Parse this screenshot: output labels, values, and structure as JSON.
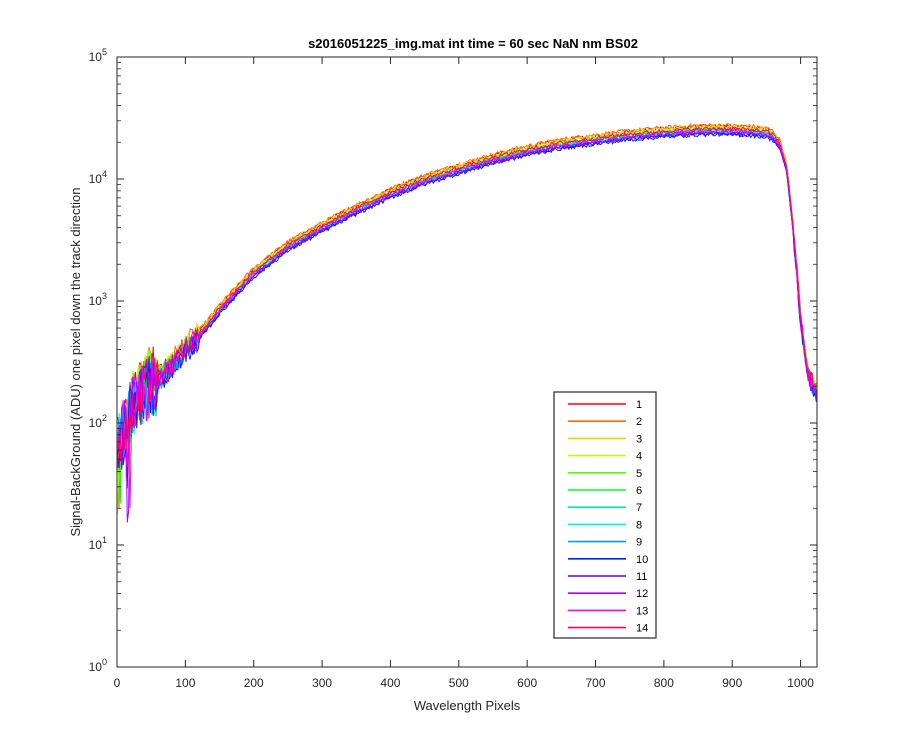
{
  "chart_data": {
    "type": "line",
    "title": "s2016051225_img.mat int time = 60 sec  NaN nm BS02",
    "xlabel": "Wavelength Pixels",
    "ylabel": "Signal-BackGround (ADU) one pixel down the track direction",
    "xlim": [
      0,
      1024
    ],
    "ylim": [
      1,
      100000
    ],
    "yscale": "log",
    "grid": false,
    "legend_position": "bottom-right",
    "x_ticks": [
      "0",
      "100",
      "200",
      "300",
      "400",
      "500",
      "600",
      "700",
      "800",
      "900",
      "1000"
    ],
    "y_ticks": [
      {
        "base": "10",
        "exp": "0"
      },
      {
        "base": "10",
        "exp": "1"
      },
      {
        "base": "10",
        "exp": "2"
      },
      {
        "base": "10",
        "exp": "3"
      },
      {
        "base": "10",
        "exp": "4"
      },
      {
        "base": "10",
        "exp": "5"
      }
    ],
    "x": [
      0,
      10,
      20,
      30,
      40,
      50,
      60,
      80,
      100,
      120,
      150,
      200,
      250,
      300,
      350,
      400,
      450,
      500,
      550,
      600,
      650,
      700,
      750,
      800,
      850,
      880,
      900,
      930,
      950,
      960,
      970,
      980,
      990,
      1000,
      1010,
      1024
    ],
    "base_values": [
      60,
      90,
      130,
      160,
      190,
      210,
      230,
      300,
      400,
      520,
      850,
      1700,
      2800,
      4000,
      5600,
      7600,
      9800,
      12000,
      14500,
      17000,
      19300,
      21000,
      22700,
      24000,
      25000,
      25200,
      25000,
      24600,
      23800,
      22500,
      19000,
      12000,
      3500,
      700,
      260,
      170
    ],
    "series": [
      {
        "name": "1",
        "color": "#ff0000",
        "scale": 1.08
      },
      {
        "name": "2",
        "color": "#ff6a00",
        "scale": 1.1
      },
      {
        "name": "3",
        "color": "#ffcc00",
        "scale": 1.07
      },
      {
        "name": "4",
        "color": "#bfff00",
        "scale": 1.04
      },
      {
        "name": "5",
        "color": "#55ff00",
        "scale": 1.02
      },
      {
        "name": "6",
        "color": "#00ff2a",
        "scale": 1.0
      },
      {
        "name": "7",
        "color": "#00ee99",
        "scale": 0.98
      },
      {
        "name": "8",
        "color": "#00eeee",
        "scale": 0.97
      },
      {
        "name": "9",
        "color": "#0099ff",
        "scale": 0.95
      },
      {
        "name": "10",
        "color": "#0022ff",
        "scale": 0.92
      },
      {
        "name": "11",
        "color": "#5500ff",
        "scale": 0.94
      },
      {
        "name": "12",
        "color": "#aa00ff",
        "scale": 0.96
      },
      {
        "name": "13",
        "color": "#ff00ee",
        "scale": 1.0
      },
      {
        "name": "14",
        "color": "#ff0066",
        "scale": 1.03
      }
    ]
  }
}
